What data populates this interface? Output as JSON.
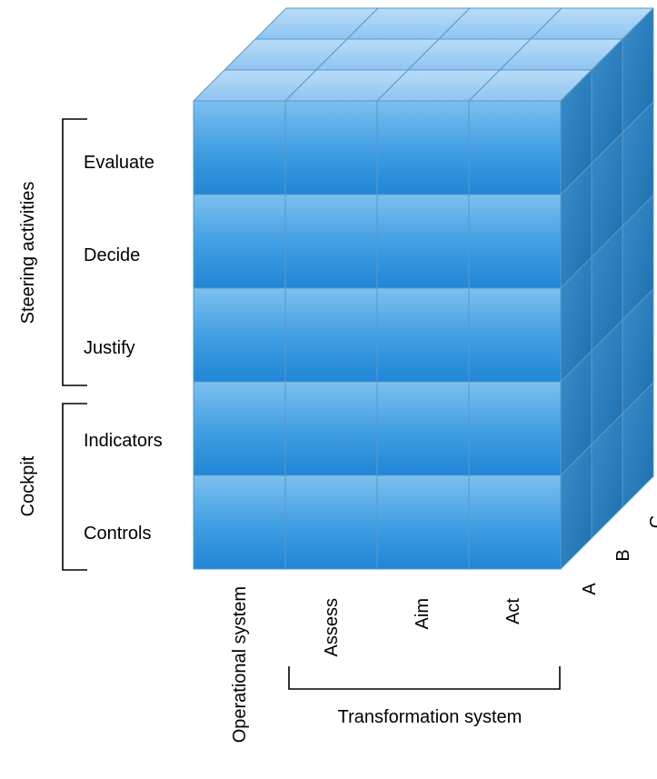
{
  "rows": [
    "Evaluate",
    "Decide",
    "Justify",
    "Indicators",
    "Controls"
  ],
  "columns": [
    "Operational system",
    "Assess",
    "Aim",
    "Act"
  ],
  "depth_labels": [
    "A",
    "B",
    "C"
  ],
  "groups": {
    "steering": "Steering activities",
    "cockpit": "Cockpit",
    "transformation": "Transformation system"
  },
  "colors": {
    "front_top": "#7cc0ef",
    "front_mid": "#3f9de2",
    "front_bottom": "#1f86d6",
    "top_light": "#b9dcf8",
    "top_dark": "#8fc5f0",
    "side_light": "#3a8cc9",
    "side_dark": "#1e6fae",
    "edge": "#5a99c8",
    "bracket": "#000000"
  }
}
